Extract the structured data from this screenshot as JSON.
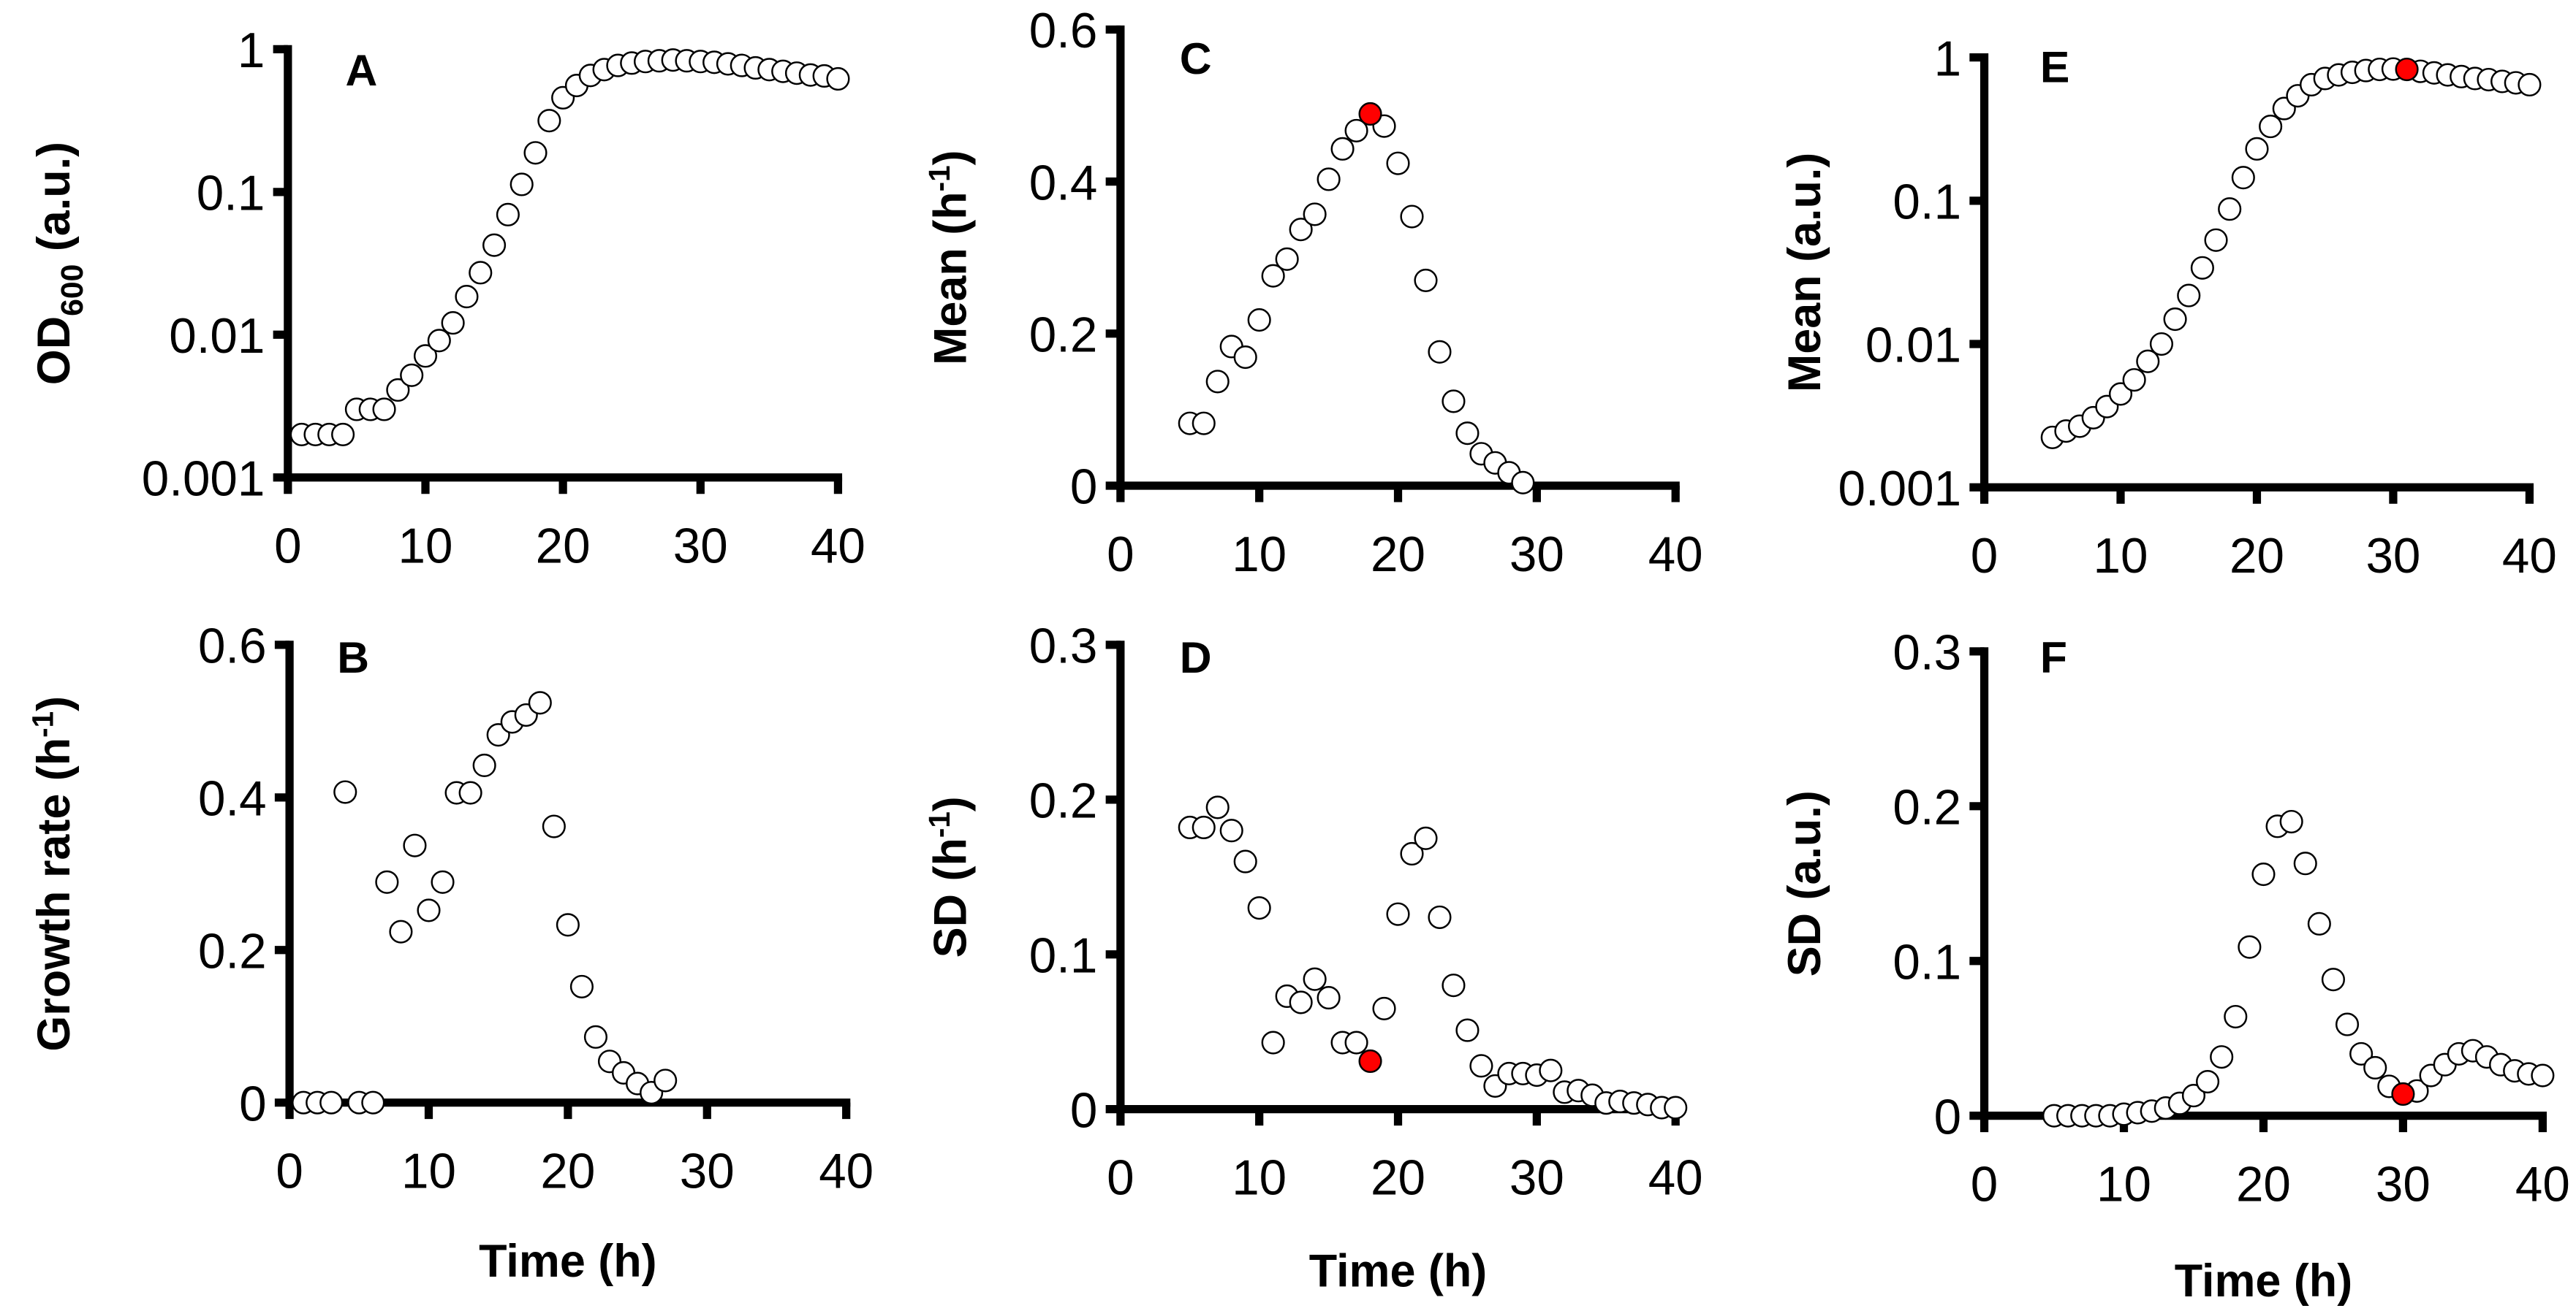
{
  "figure": {
    "highlight_color": "#FF0000",
    "marker_fill": "#FFFFFF",
    "marker_stroke": "#000000"
  },
  "chart_data": [
    {
      "id": "A",
      "panel_label": "A",
      "type": "scatter",
      "ylabel": "OD",
      "ylabel_sub": "600",
      "ylabel_suffix": " (a.u.)",
      "xlabel": "",
      "yscale": "log",
      "ylim": [
        0.001,
        1
      ],
      "xlim": [
        0,
        40
      ],
      "xticks": [
        0,
        10,
        20,
        30,
        40
      ],
      "xtick_labels": [
        "0",
        "10",
        "20",
        "30",
        "40"
      ],
      "yticks": [
        0.001,
        0.01,
        0.1,
        1
      ],
      "ytick_labels": [
        "0.001",
        "0.01",
        "0.1",
        "1"
      ],
      "grid": false,
      "x": [
        1,
        2,
        3,
        4,
        5,
        6,
        7,
        8,
        9,
        10,
        11,
        12,
        13,
        14,
        15,
        16,
        17,
        18,
        19,
        20,
        21,
        22,
        23,
        24,
        25,
        26,
        27,
        28,
        29,
        30,
        31,
        32,
        33,
        34,
        35,
        36,
        37,
        38,
        39,
        40
      ],
      "y": [
        0.002,
        0.002,
        0.002,
        0.002,
        0.003,
        0.003,
        0.003,
        0.0041,
        0.0052,
        0.0071,
        0.0091,
        0.0121,
        0.0185,
        0.0272,
        0.0424,
        0.0694,
        0.113,
        0.188,
        0.316,
        0.457,
        0.557,
        0.655,
        0.72,
        0.77,
        0.8,
        0.82,
        0.83,
        0.84,
        0.83,
        0.82,
        0.81,
        0.79,
        0.77,
        0.74,
        0.72,
        0.7,
        0.68,
        0.66,
        0.65,
        0.62
      ],
      "highlight_index": null
    },
    {
      "id": "B",
      "panel_label": "B",
      "type": "scatter",
      "ylabel": "Growth rate (h",
      "ylabel_sup": "-1",
      "ylabel_suffix": ")",
      "xlabel": "Time (h)",
      "yscale": "linear",
      "ylim": [
        0,
        0.6
      ],
      "xlim": [
        0,
        40
      ],
      "xticks": [
        0,
        10,
        20,
        30,
        40
      ],
      "xtick_labels": [
        "0",
        "10",
        "20",
        "30",
        "40"
      ],
      "yticks": [
        0,
        0.2,
        0.4,
        0.6
      ],
      "ytick_labels": [
        "0",
        "0.2",
        "0.4",
        "0.6"
      ],
      "grid": false,
      "x": [
        1,
        2,
        3,
        4,
        5,
        6,
        7,
        8,
        9,
        10,
        11,
        12,
        13,
        14,
        15,
        16,
        17,
        18,
        19,
        20,
        21,
        22,
        23,
        24,
        25,
        26,
        27
      ],
      "y": [
        0,
        0,
        0,
        0.407,
        0,
        0,
        0.289,
        0.224,
        0.337,
        0.252,
        0.289,
        0.406,
        0.406,
        0.442,
        0.482,
        0.499,
        0.508,
        0.524,
        0.362,
        0.233,
        0.152,
        0.086,
        0.054,
        0.039,
        0.025,
        0.013,
        0.029
      ],
      "highlight_index": null
    },
    {
      "id": "C",
      "panel_label": "C",
      "type": "scatter",
      "ylabel": "Mean (h",
      "ylabel_sup": "-1",
      "ylabel_suffix": ")",
      "xlabel": "",
      "yscale": "linear",
      "ylim": [
        0,
        0.6
      ],
      "xlim": [
        0,
        40
      ],
      "xticks": [
        0,
        10,
        20,
        30,
        40
      ],
      "xtick_labels": [
        "0",
        "10",
        "20",
        "30",
        "40"
      ],
      "yticks": [
        0,
        0.2,
        0.4,
        0.6
      ],
      "ytick_labels": [
        "0",
        "0.2",
        "0.4",
        "0.6"
      ],
      "grid": false,
      "x": [
        5,
        6,
        7,
        8,
        9,
        10,
        11,
        12,
        13,
        14,
        15,
        16,
        17,
        18,
        19,
        20,
        21,
        22,
        23,
        24,
        25,
        26,
        27,
        28,
        29
      ],
      "y": [
        0.082,
        0.082,
        0.137,
        0.183,
        0.169,
        0.218,
        0.276,
        0.298,
        0.337,
        0.357,
        0.403,
        0.443,
        0.467,
        0.489,
        0.473,
        0.424,
        0.354,
        0.27,
        0.176,
        0.111,
        0.069,
        0.042,
        0.03,
        0.017,
        0.004
      ],
      "highlight_index": 13
    },
    {
      "id": "D",
      "panel_label": "D",
      "type": "scatter",
      "ylabel": "SD (h",
      "ylabel_sup": "-1",
      "ylabel_suffix": ")",
      "xlabel": "Time (h)",
      "yscale": "linear",
      "ylim": [
        0,
        0.3
      ],
      "xlim": [
        0,
        40
      ],
      "xticks": [
        0,
        10,
        20,
        30,
        40
      ],
      "xtick_labels": [
        "0",
        "10",
        "20",
        "30",
        "40"
      ],
      "yticks": [
        0,
        0.1,
        0.2,
        0.3
      ],
      "ytick_labels": [
        "0",
        "0.1",
        "0.2",
        "0.3"
      ],
      "grid": false,
      "x": [
        5,
        6,
        7,
        8,
        9,
        10,
        11,
        12,
        13,
        14,
        15,
        16,
        17,
        18,
        19,
        20,
        21,
        22,
        23,
        24,
        25,
        26,
        27,
        28,
        29,
        30,
        31,
        32,
        33,
        34,
        35,
        36,
        37,
        38,
        39,
        40
      ],
      "y": [
        0.182,
        0.182,
        0.195,
        0.18,
        0.16,
        0.13,
        0.043,
        0.073,
        0.069,
        0.084,
        0.072,
        0.043,
        0.043,
        0.031,
        0.065,
        0.126,
        0.165,
        0.175,
        0.124,
        0.08,
        0.051,
        0.028,
        0.015,
        0.023,
        0.023,
        0.022,
        0.025,
        0.011,
        0.012,
        0.009,
        0.004,
        0.005,
        0.004,
        0.003,
        0.001,
        0.001
      ],
      "highlight_index": 13
    },
    {
      "id": "E",
      "panel_label": "E",
      "type": "scatter",
      "ylabel": "Mean (a.u.)",
      "xlabel": "",
      "yscale": "log",
      "ylim": [
        0.001,
        1
      ],
      "xlim": [
        0,
        40
      ],
      "xticks": [
        0,
        10,
        20,
        30,
        40
      ],
      "xtick_labels": [
        "0",
        "10",
        "20",
        "30",
        "40"
      ],
      "yticks": [
        0.001,
        0.01,
        0.1,
        1
      ],
      "ytick_labels": [
        "0.001",
        "0.01",
        "0.1",
        "1"
      ],
      "grid": false,
      "x": [
        5,
        6,
        7,
        8,
        9,
        10,
        11,
        12,
        13,
        14,
        15,
        16,
        17,
        18,
        19,
        20,
        21,
        22,
        23,
        24,
        25,
        26,
        27,
        28,
        29,
        30,
        31,
        32,
        33,
        34,
        35,
        36,
        37,
        38,
        39,
        40
      ],
      "y": [
        0.00223,
        0.00247,
        0.00267,
        0.00306,
        0.00366,
        0.00448,
        0.00562,
        0.00757,
        0.01,
        0.0149,
        0.0218,
        0.034,
        0.0531,
        0.0875,
        0.145,
        0.23,
        0.33,
        0.44,
        0.54,
        0.645,
        0.713,
        0.755,
        0.787,
        0.81,
        0.825,
        0.83,
        0.825,
        0.8,
        0.78,
        0.755,
        0.735,
        0.713,
        0.7,
        0.68,
        0.665,
        0.645
      ],
      "highlight_index": 26
    },
    {
      "id": "F",
      "panel_label": "F",
      "type": "scatter",
      "ylabel": "SD (a.u.)",
      "xlabel": "Time (h)",
      "yscale": "linear",
      "ylim": [
        0,
        0.3
      ],
      "xlim": [
        0,
        40
      ],
      "xticks": [
        0,
        10,
        20,
        30,
        40
      ],
      "xtick_labels": [
        "0",
        "10",
        "20",
        "30",
        "40"
      ],
      "yticks": [
        0,
        0.1,
        0.2,
        0.3
      ],
      "ytick_labels": [
        "0",
        "0.1",
        "0.2",
        "0.3"
      ],
      "grid": false,
      "x": [
        5,
        6,
        7,
        8,
        9,
        10,
        11,
        12,
        13,
        14,
        15,
        16,
        17,
        18,
        19,
        20,
        21,
        22,
        23,
        24,
        25,
        26,
        27,
        28,
        29,
        30,
        31,
        32,
        33,
        34,
        35,
        36,
        37,
        38,
        39,
        40
      ],
      "y": [
        0.0,
        0.0,
        0.0,
        0.0,
        0.0,
        0.001,
        0.002,
        0.003,
        0.005,
        0.008,
        0.013,
        0.022,
        0.038,
        0.064,
        0.109,
        0.156,
        0.187,
        0.19,
        0.163,
        0.124,
        0.088,
        0.059,
        0.04,
        0.031,
        0.019,
        0.014,
        0.016,
        0.026,
        0.033,
        0.04,
        0.042,
        0.038,
        0.033,
        0.029,
        0.027,
        0.026
      ],
      "highlight_index": 25
    }
  ]
}
